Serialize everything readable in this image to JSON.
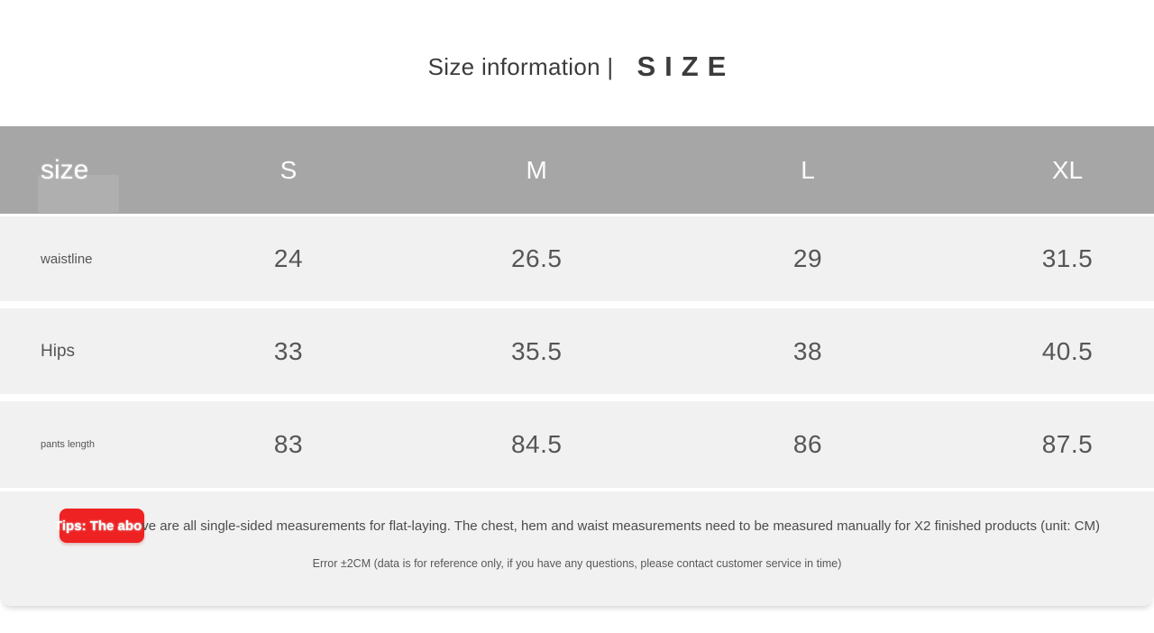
{
  "title": {
    "main": "Size information |",
    "accent": "SIZE"
  },
  "table": {
    "header": {
      "label": "size",
      "columns": [
        "S",
        "M",
        "L",
        "XL"
      ]
    },
    "rows": [
      {
        "label": "waistline",
        "values": [
          "24",
          "26.5",
          "29",
          "31.5"
        ]
      },
      {
        "label": "Hips",
        "values": [
          "33",
          "35.5",
          "38",
          "40.5"
        ]
      },
      {
        "label": "pants length",
        "values": [
          "83",
          "84.5",
          "86",
          "87.5"
        ]
      }
    ]
  },
  "tips": {
    "badge_prefix": "Tips: The abo",
    "body": "ve are all single-sided measurements for flat-laying. The chest, hem and waist measurements need to be measured manually for X2 finished products (unit: CM)",
    "error_note": "Error ±2CM (data is for reference only, if you have any questions, please contact customer service in time)"
  },
  "colors": {
    "header_bg": "#a6a6a6",
    "row_bg": "#f1f1f2",
    "panel_bg": "#f1f1f1",
    "badge_red": "#ee2222",
    "title_text": "#3c3c3c",
    "cell_text": "#565656"
  }
}
